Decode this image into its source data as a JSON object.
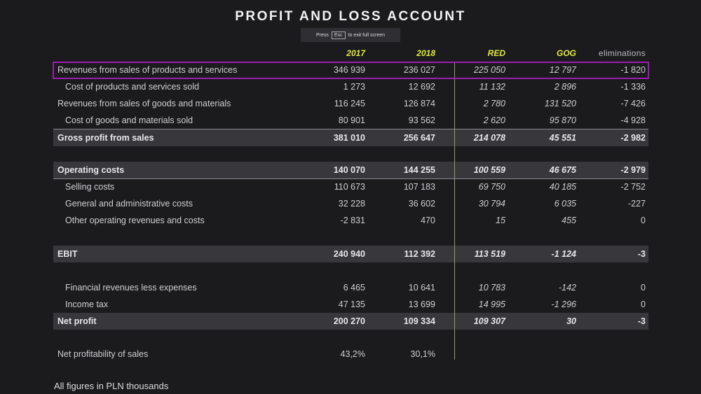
{
  "title": "PROFIT AND LOSS ACCOUNT",
  "fullscreen_toast": {
    "press": "Press",
    "key": "Esc",
    "rest": "to exit full screen"
  },
  "columns": [
    "2017",
    "2018",
    "RED",
    "GOG",
    "eliminations"
  ],
  "rows": [
    {
      "label": "Revenues from sales of products and services",
      "values": [
        "346 939",
        "236 027",
        "225 050",
        "12 797",
        "-1 820"
      ],
      "indent": false,
      "band": false,
      "highlighted": true
    },
    {
      "label": "Cost of products and services sold",
      "values": [
        "1 273",
        "12 692",
        "11 132",
        "2 896",
        "-1 336"
      ],
      "indent": true,
      "band": false
    },
    {
      "label": "Revenues from sales of goods and materials",
      "values": [
        "116 245",
        "126 874",
        "2 780",
        "131 520",
        "-7 426"
      ],
      "indent": false,
      "band": false
    },
    {
      "label": "Cost of goods and materials sold",
      "values": [
        "80 901",
        "93 562",
        "2 620",
        "95 870",
        "-4 928"
      ],
      "indent": true,
      "band": false
    },
    {
      "label": "Gross profit from sales",
      "values": [
        "381 010",
        "256 647",
        "214 078",
        "45 551",
        "-2 982"
      ],
      "indent": false,
      "band": true,
      "line": "top"
    },
    null,
    {
      "label": "Operating costs",
      "values": [
        "140 070",
        "144 255",
        "100 559",
        "46 675",
        "-2 979"
      ],
      "indent": false,
      "band": true,
      "line": "bottom"
    },
    {
      "label": "Selling costs",
      "values": [
        "110 673",
        "107 183",
        "69 750",
        "40 185",
        "-2 752"
      ],
      "indent": true,
      "band": false
    },
    {
      "label": "General and administrative costs",
      "values": [
        "32 228",
        "36 602",
        "30 794",
        "6 035",
        "-227"
      ],
      "indent": true,
      "band": false
    },
    {
      "label": "Other operating revenues and costs",
      "values": [
        "-2 831",
        "470",
        "15",
        "455",
        "0"
      ],
      "indent": true,
      "band": false
    },
    null,
    {
      "label": "EBIT",
      "values": [
        "240 940",
        "112 392",
        "113 519",
        "-1 124",
        "-3"
      ],
      "indent": false,
      "band": true
    },
    null,
    {
      "label": "Financial revenues less expenses",
      "values": [
        "6 465",
        "10 641",
        "10 783",
        "-142",
        "0"
      ],
      "indent": true,
      "band": false
    },
    {
      "label": "Income tax",
      "values": [
        "47 135",
        "13 699",
        "14 995",
        "-1 296",
        "0"
      ],
      "indent": true,
      "band": false
    },
    {
      "label": "Net profit",
      "values": [
        "200 270",
        "109 334",
        "109 307",
        "30",
        "-3"
      ],
      "indent": false,
      "band": true
    },
    null,
    {
      "label": "Net profitability of sales",
      "values": [
        "43,2%",
        "30,1%",
        "",
        "",
        ""
      ],
      "indent": false,
      "band": false
    }
  ],
  "footnote": "All figures in PLN thousands",
  "colors": {
    "accent": "#e2ec3c",
    "highlight": "#9b1fb0",
    "band": "#38373b"
  }
}
